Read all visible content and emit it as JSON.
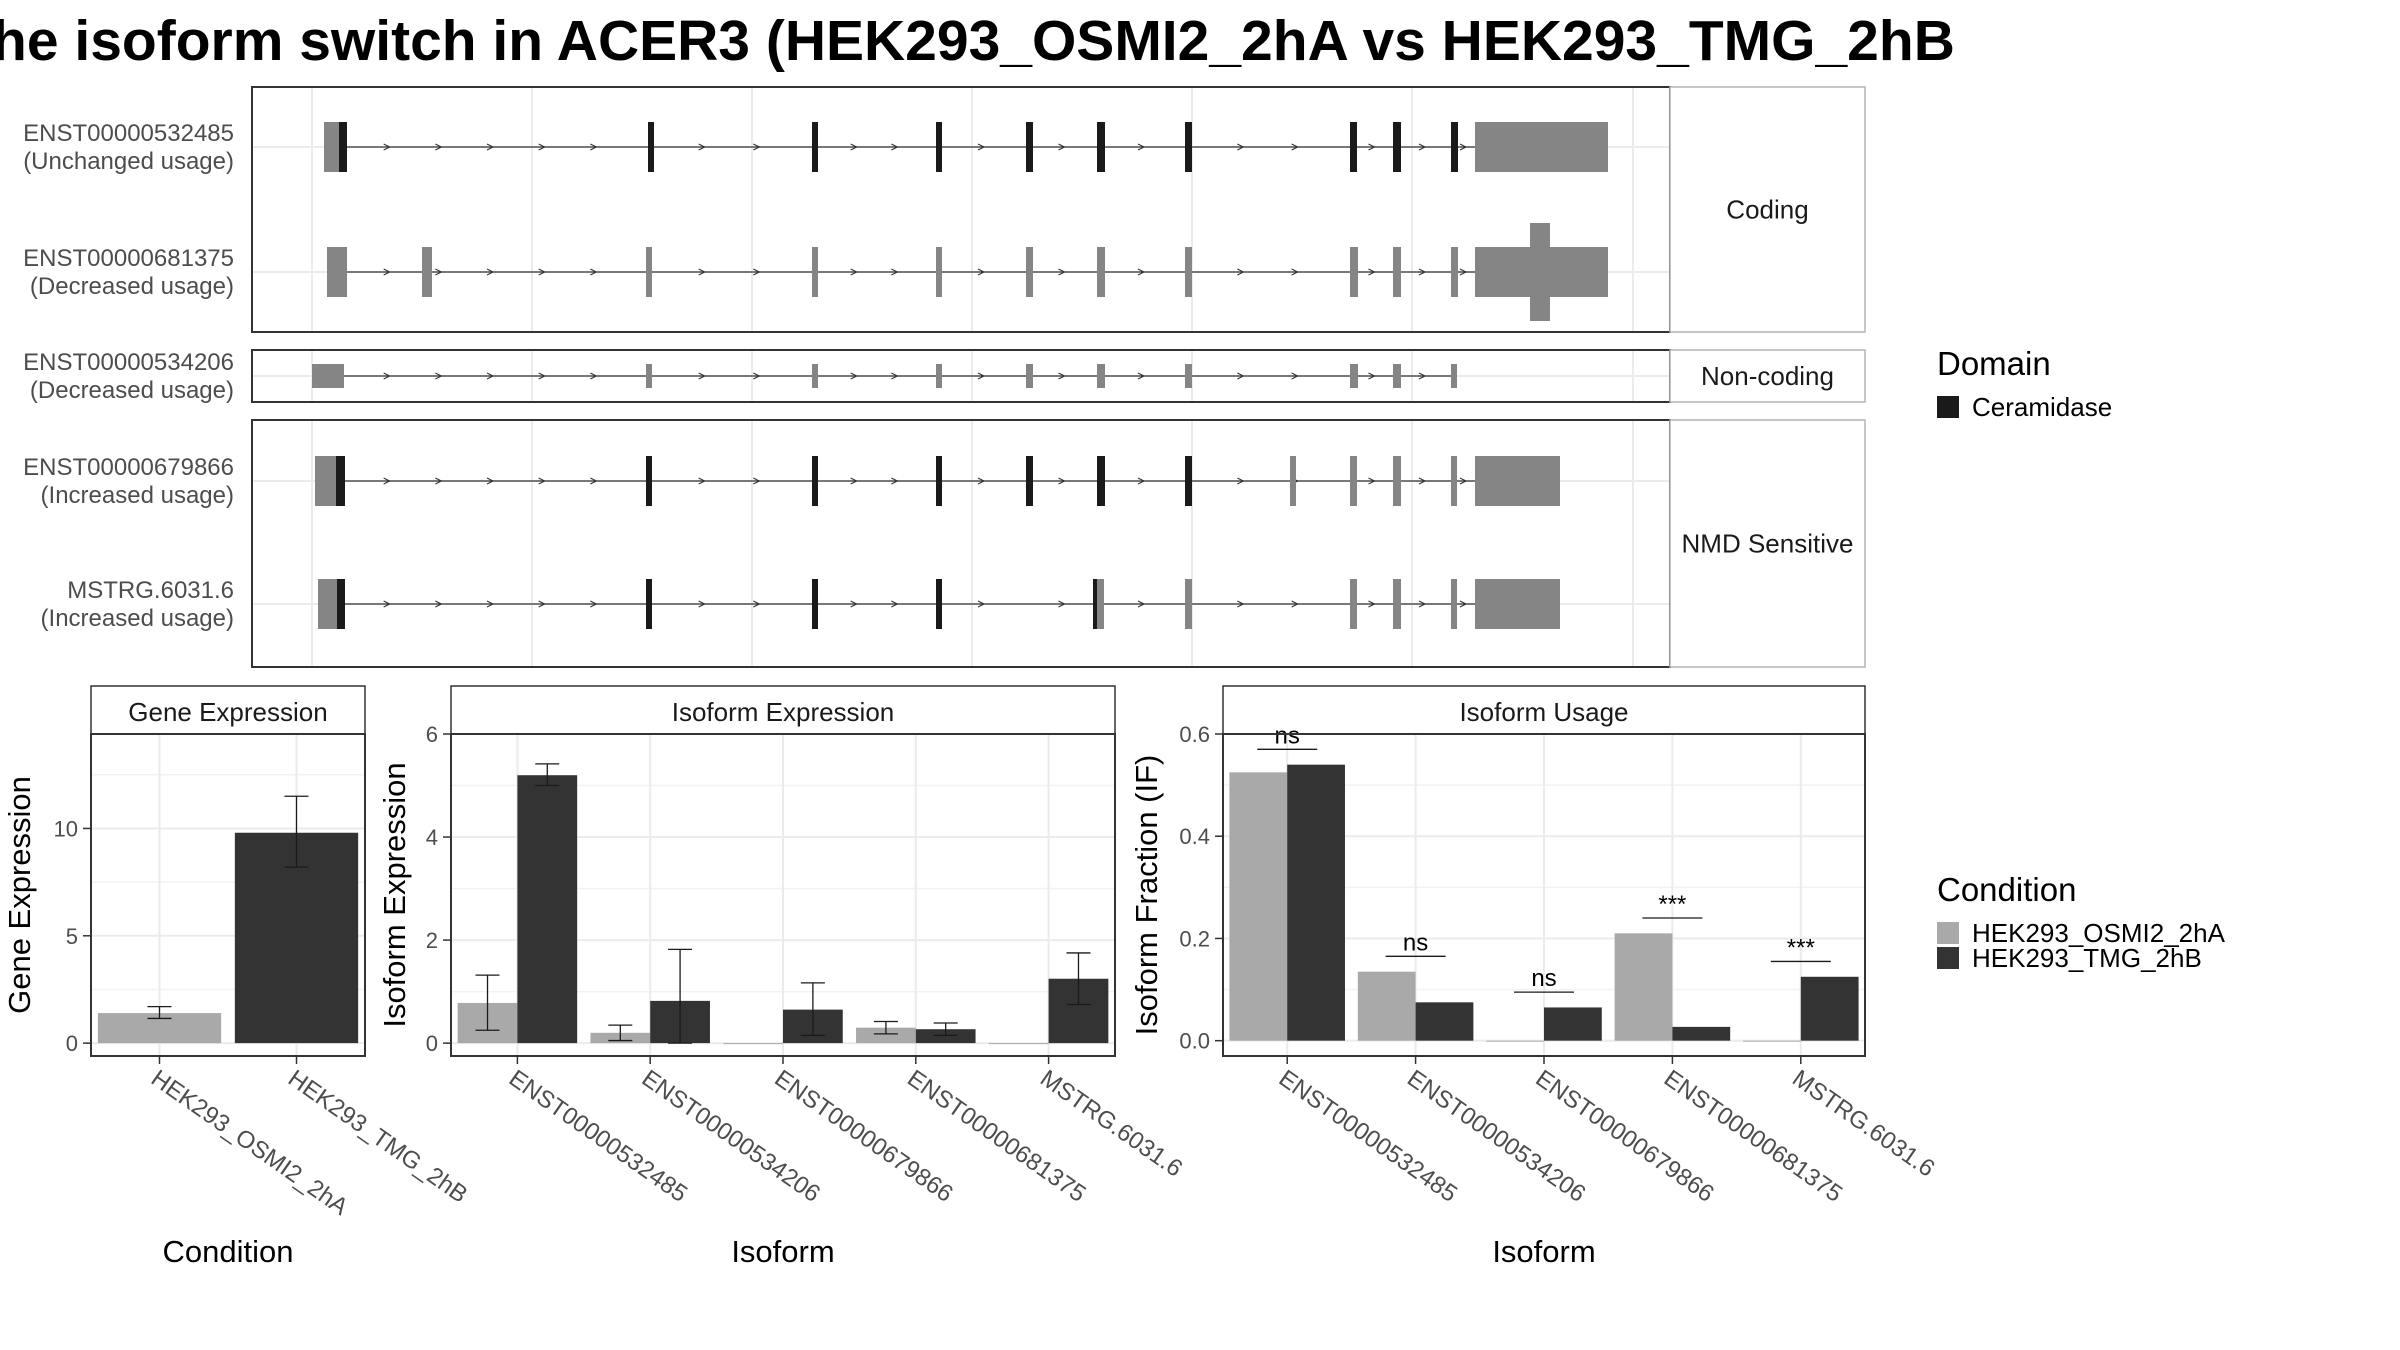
{
  "title": "he isoform switch in ACER3 (HEK293_OSMI2_2hA vs HEK293_TMG_2hB",
  "transcript_panel": {
    "groups": [
      {
        "label": "Coding",
        "isoforms": [
          {
            "id": "ENST00000532485",
            "usage": "(Unchanged usage)"
          },
          {
            "id": "ENST00000681375",
            "usage": "(Decreased usage)"
          }
        ]
      },
      {
        "label": "Non-coding",
        "isoforms": [
          {
            "id": "ENST00000534206",
            "usage": "(Decreased usage)"
          }
        ]
      },
      {
        "label": "NMD Sensitive",
        "isoforms": [
          {
            "id": "ENST00000679866",
            "usage": "(Increased usage)"
          },
          {
            "id": "MSTRG.6031.6",
            "usage": "(Increased usage)"
          }
        ]
      }
    ]
  },
  "legend_domain": {
    "title": "Domain",
    "items": [
      {
        "label": "Ceramidase",
        "color": "#1a1a1a"
      }
    ]
  },
  "legend_condition": {
    "title": "Condition",
    "items": [
      {
        "label": "HEK293_OSMI2_2hA",
        "color": "#a9a9a9"
      },
      {
        "label": "HEK293_TMG_2hB",
        "color": "#333333"
      }
    ]
  },
  "chart_data": [
    {
      "type": "bar",
      "title": "Gene Expression",
      "xlabel": "Condition",
      "ylabel": "Gene Expression",
      "categories": [
        "HEK293_OSMI2_2hA",
        "HEK293_TMG_2hB"
      ],
      "values": [
        1.4,
        9.8
      ],
      "error_low": [
        1.15,
        8.2
      ],
      "error_high": [
        1.7,
        11.5
      ],
      "colors": [
        "#a9a9a9",
        "#333333"
      ],
      "ylim": [
        -0.6,
        14.4
      ],
      "yticks": [
        0,
        5,
        10
      ]
    },
    {
      "type": "bar",
      "title": "Isoform Expression",
      "xlabel": "Isoform",
      "ylabel": "Isoform Expression",
      "categories": [
        "ENST00000532485",
        "ENST00000534206",
        "ENST00000679866",
        "ENST00000681375",
        "MSTRG.6031.6"
      ],
      "series": [
        {
          "name": "HEK293_OSMI2_2hA",
          "color": "#a9a9a9",
          "values": [
            0.78,
            0.2,
            0.0,
            0.3,
            0.0
          ],
          "error_low": [
            0.25,
            0.05,
            0.0,
            0.18,
            0.0
          ],
          "error_high": [
            1.32,
            0.35,
            0.0,
            0.42,
            0.0
          ]
        },
        {
          "name": "HEK293_TMG_2hB",
          "color": "#333333",
          "values": [
            5.2,
            0.82,
            0.65,
            0.27,
            1.25
          ],
          "error_low": [
            5.0,
            0.0,
            0.15,
            0.15,
            0.75
          ],
          "error_high": [
            5.42,
            1.82,
            1.17,
            0.39,
            1.75
          ]
        }
      ],
      "ylim": [
        -0.25,
        6.0
      ],
      "yticks": [
        0,
        2,
        4,
        6
      ]
    },
    {
      "type": "bar",
      "title": "Isoform Usage",
      "xlabel": "Isoform",
      "ylabel": "Isoform Fraction (IF)",
      "categories": [
        "ENST00000532485",
        "ENST00000534206",
        "ENST00000679866",
        "ENST00000681375",
        "MSTRG.6031.6"
      ],
      "series": [
        {
          "name": "HEK293_OSMI2_2hA",
          "color": "#a9a9a9",
          "values": [
            0.525,
            0.135,
            0.0,
            0.21,
            0.0
          ]
        },
        {
          "name": "HEK293_TMG_2hB",
          "color": "#333333",
          "values": [
            0.54,
            0.075,
            0.065,
            0.027,
            0.125
          ]
        }
      ],
      "significance": [
        {
          "label": "ns",
          "y": 0.57
        },
        {
          "label": "ns",
          "y": 0.165
        },
        {
          "label": "ns",
          "y": 0.095
        },
        {
          "label": "***",
          "y": 0.24
        },
        {
          "label": "***",
          "y": 0.155
        }
      ],
      "ylim": [
        -0.03,
        0.6
      ],
      "yticks": [
        0.0,
        0.2,
        0.4,
        0.6
      ]
    }
  ]
}
